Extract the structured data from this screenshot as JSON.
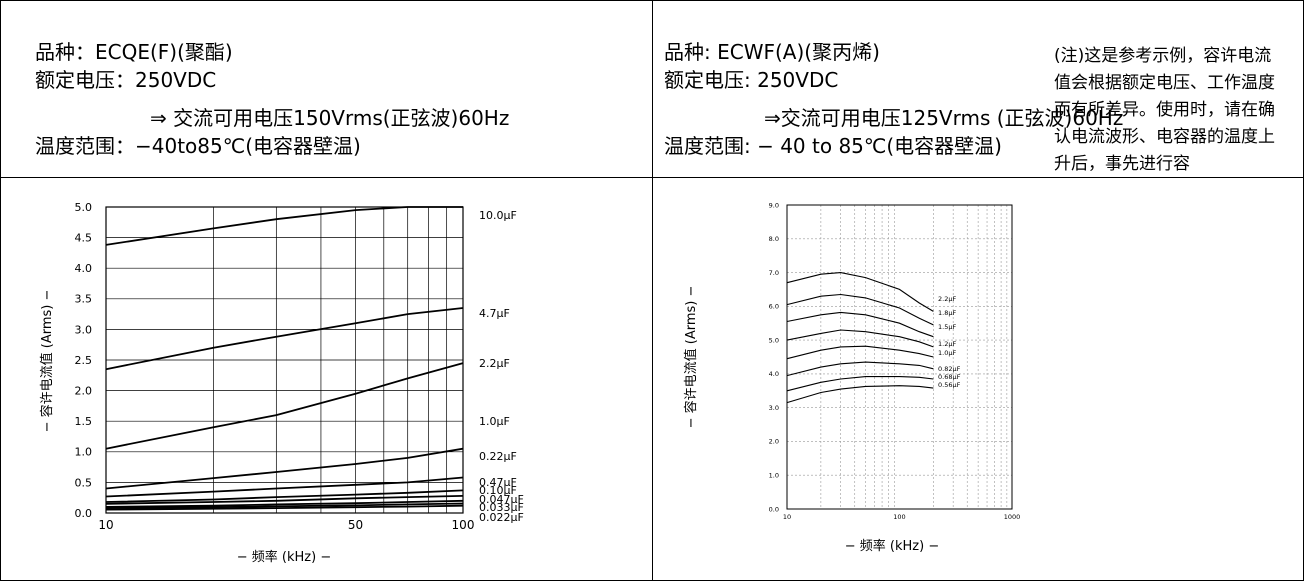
{
  "left": {
    "spec": {
      "line1": "品种：ECQE(F)(聚酯)",
      "line2": "额定电压：250VDC",
      "line3": "⇒ 交流可用电压150Vrms(正弦波)60Hz",
      "line4": "温度范围：−40to85℃(电容器壁温)"
    }
  },
  "right": {
    "spec": {
      "line1": "品种: ECWF(A)(聚丙烯)",
      "line2": "额定电压: 250VDC",
      "line3": "⇒交流可用电压125Vrms (正弦波)60Hz",
      "line4": "温度范围: − 40 to 85℃(电容器壁温)"
    },
    "note": "(注)这是参考示例，容许电流值会根据额定电压、工作温度而有所差异。使用时，请在确认电流波形、电容器的温度上升后，事先进行容"
  },
  "chart_data": [
    {
      "type": "line",
      "xscale": "log",
      "xlim": [
        10,
        100
      ],
      "ylim": [
        0,
        5.0
      ],
      "yticks": [
        "0.0",
        "0.5",
        "1.0",
        "1.5",
        "2.0",
        "2.5",
        "3.0",
        "3.5",
        "4.0",
        "4.5",
        "5.0"
      ],
      "xticks": [
        "10",
        "50",
        "100"
      ],
      "xlabel": "−  频率   (kHz)  −",
      "ylabel": "−  容许电流值    (Arms)  −",
      "grid": true,
      "x": [
        10,
        20,
        30,
        50,
        70,
        100
      ],
      "series": [
        {
          "name": "10.0μF",
          "values": [
            4.38,
            4.65,
            4.8,
            4.95,
            5.0,
            5.0
          ]
        },
        {
          "name": "4.7μF",
          "values": [
            2.35,
            2.7,
            2.88,
            3.1,
            3.25,
            3.35
          ]
        },
        {
          "name": "2.2μF",
          "values": [
            1.05,
            1.4,
            1.6,
            1.95,
            2.2,
            2.45
          ]
        },
        {
          "name": "1.0μF",
          "values": [
            0.4,
            0.57,
            0.67,
            0.8,
            0.9,
            1.05
          ]
        },
        {
          "name": "0.22μF",
          "values": [
            0.27,
            0.35,
            0.4,
            0.46,
            0.5,
            0.58
          ]
        },
        {
          "name": "0.47μF",
          "values": [
            0.18,
            0.22,
            0.26,
            0.3,
            0.33,
            0.37
          ]
        },
        {
          "name": "0.10μF",
          "values": [
            0.15,
            0.18,
            0.2,
            0.24,
            0.26,
            0.28
          ]
        },
        {
          "name": "0.047μF",
          "values": [
            0.1,
            0.12,
            0.14,
            0.16,
            0.18,
            0.2
          ]
        },
        {
          "name": "0.033μF",
          "values": [
            0.08,
            0.095,
            0.11,
            0.125,
            0.14,
            0.155
          ]
        },
        {
          "name": "0.022μF",
          "values": [
            0.055,
            0.07,
            0.08,
            0.095,
            0.105,
            0.12
          ]
        }
      ]
    },
    {
      "type": "line",
      "xscale": "log",
      "xlim": [
        10,
        1000
      ],
      "ylim": [
        0,
        9.0
      ],
      "yticks": [
        "0.0",
        "1.0",
        "2.0",
        "3.0",
        "4.0",
        "5.0",
        "6.0",
        "7.0",
        "8.0",
        "9.0"
      ],
      "xticks": [
        "10",
        "100",
        "1000"
      ],
      "xlabel": "−  频率   (kHz)  −",
      "ylabel": "−  容许电流值    (Arms)  −",
      "grid": true,
      "x": [
        10,
        20,
        30,
        50,
        100,
        150,
        200
      ],
      "series": [
        {
          "name": "2.2μF",
          "values": [
            6.7,
            6.95,
            7.0,
            6.85,
            6.5,
            6.1,
            5.85
          ]
        },
        {
          "name": "1.8μF",
          "values": [
            6.05,
            6.3,
            6.35,
            6.25,
            5.95,
            5.65,
            5.45
          ]
        },
        {
          "name": "1.5μF",
          "values": [
            5.55,
            5.75,
            5.82,
            5.75,
            5.5,
            5.25,
            5.1
          ]
        },
        {
          "name": "1.2μF",
          "values": [
            5.0,
            5.2,
            5.3,
            5.25,
            5.1,
            4.95,
            4.8
          ]
        },
        {
          "name": "1.0μF",
          "values": [
            4.45,
            4.7,
            4.8,
            4.82,
            4.7,
            4.6,
            4.5
          ]
        },
        {
          "name": "0.82μF",
          "values": [
            3.95,
            4.2,
            4.3,
            4.35,
            4.3,
            4.25,
            4.15
          ]
        },
        {
          "name": "0.68μF",
          "values": [
            3.5,
            3.75,
            3.85,
            3.92,
            3.92,
            3.9,
            3.85
          ]
        },
        {
          "name": "0.56μF",
          "values": [
            3.15,
            3.45,
            3.55,
            3.63,
            3.65,
            3.63,
            3.58
          ]
        }
      ]
    }
  ]
}
